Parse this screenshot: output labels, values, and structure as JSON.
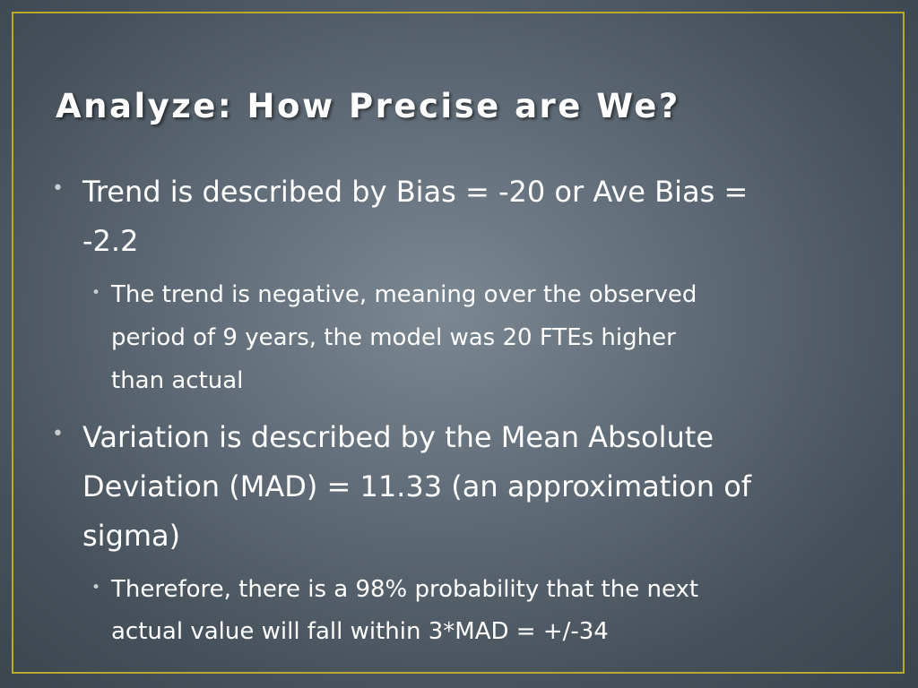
{
  "slide": {
    "title": "Analyze: How Precise are We?",
    "bullet_glyph": "•",
    "points": [
      {
        "lines": [
          "Trend is described by Bias = -20 or Ave Bias =",
          "-2.2"
        ],
        "subpoints": [
          {
            "lines": [
              "The trend is negative, meaning over the observed",
              "period of 9 years,  the model was 20 FTEs higher",
              "than actual"
            ]
          }
        ]
      },
      {
        "lines": [
          "Variation is described by the Mean Absolute",
          "Deviation (MAD) = 11.33 (an approximation of",
          "sigma)"
        ],
        "subpoints": [
          {
            "lines": [
              "Therefore, there is a 98% probability that the next",
              "actual value will fall within 3*MAD = +/-34"
            ]
          }
        ]
      }
    ]
  }
}
